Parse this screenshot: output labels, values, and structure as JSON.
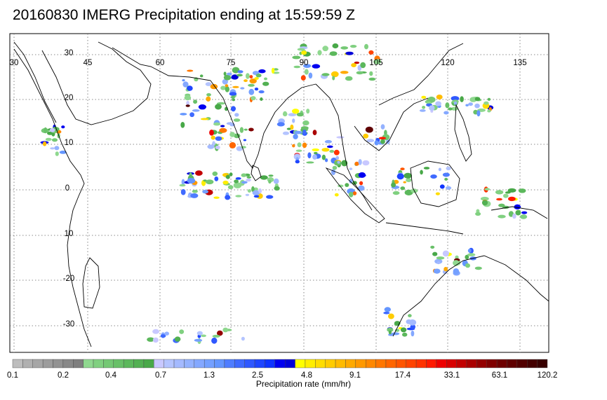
{
  "title": "20160830 IMERG Precipitation ending at 15:59:59 Z",
  "map": {
    "lon_labels": [
      "30",
      "45",
      "60",
      "75",
      "90",
      "105",
      "120",
      "135"
    ],
    "lat_labels": [
      "30",
      "20",
      "10",
      "0",
      "10",
      "-20",
      "-30"
    ],
    "region": "Indian Ocean / South & Southeast Asia",
    "lon_range": [
      30,
      143
    ],
    "lat_range": [
      -38,
      37
    ],
    "grid": "dotted",
    "coast_color": "#000000"
  },
  "legend": {
    "title": "Precipitation rate (mm/hr)",
    "tick_labels": [
      "0.1",
      "0.2",
      "0.4",
      "0.7",
      "1.3",
      "2.5",
      "4.8",
      "9.1",
      "17.4",
      "33.1",
      "63.1",
      "120.2"
    ],
    "colors": [
      "#bdbdbd",
      "#b0b0b0",
      "#a6a6a6",
      "#9c9c9c",
      "#929292",
      "#888888",
      "#7e7e7e",
      "#8fd88f",
      "#80d080",
      "#74c874",
      "#68c068",
      "#5cb85c",
      "#52b052",
      "#48a848",
      "#c8c8ff",
      "#b4c4ff",
      "#a4baff",
      "#94b2ff",
      "#84a8ff",
      "#74a0ff",
      "#6496ff",
      "#4f7dff",
      "#3f6aff",
      "#2f58ff",
      "#1f46ff",
      "#0f34ff",
      "#0000f0",
      "#0000d8",
      "#ffff00",
      "#ffee00",
      "#ffdd00",
      "#ffcc00",
      "#ffbb00",
      "#ffaa00",
      "#ff9900",
      "#ff8800",
      "#ff7700",
      "#ff6600",
      "#ff5500",
      "#ff4400",
      "#ff3300",
      "#ff1a00",
      "#ee0000",
      "#d80000",
      "#c20000",
      "#aa0000",
      "#940000",
      "#800000",
      "#6e0000",
      "#600000",
      "#520000",
      "#440000",
      "#380000"
    ]
  }
}
